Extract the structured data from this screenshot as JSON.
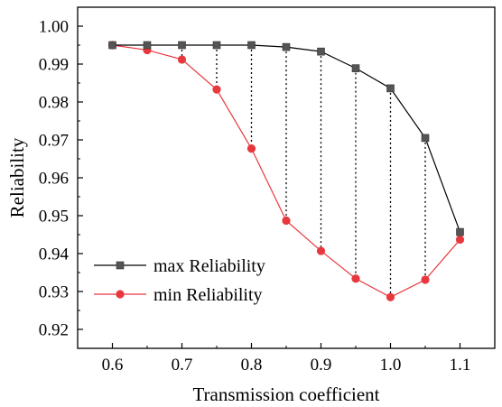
{
  "chart_data": {
    "type": "line",
    "title": "",
    "xlabel": "Transmission coefficient",
    "ylabel": "Reliability",
    "xlim": [
      0.55,
      1.15
    ],
    "ylim": [
      0.915,
      1.005
    ],
    "x": [
      0.6,
      0.65,
      0.7,
      0.75,
      0.8,
      0.85,
      0.9,
      0.95,
      1.0,
      1.05,
      1.1
    ],
    "x_ticks": [
      "0.6",
      "0.7",
      "0.8",
      "0.9",
      "1.0",
      "1.1"
    ],
    "y_ticks": [
      "0.92",
      "0.93",
      "0.94",
      "0.95",
      "0.96",
      "0.97",
      "0.98",
      "0.99",
      "1.00"
    ],
    "grid": false,
    "legend_position": "bottom-left",
    "connectors": "dotted vertical lines between max and min at each x",
    "series": [
      {
        "name": "max Reliability",
        "marker": "square",
        "color": "#000000",
        "marker_color": "#555555",
        "values": [
          0.995,
          0.995,
          0.995,
          0.995,
          0.995,
          0.9945,
          0.9933,
          0.9889,
          0.9836,
          0.9705,
          0.9457
        ]
      },
      {
        "name": "min Reliability",
        "marker": "circle",
        "color": "#e8383d",
        "marker_color": "#e8383d",
        "values": [
          0.995,
          0.9937,
          0.9912,
          0.9833,
          0.9677,
          0.9487,
          0.9407,
          0.9334,
          0.9285,
          0.9331,
          0.9437
        ]
      }
    ]
  }
}
